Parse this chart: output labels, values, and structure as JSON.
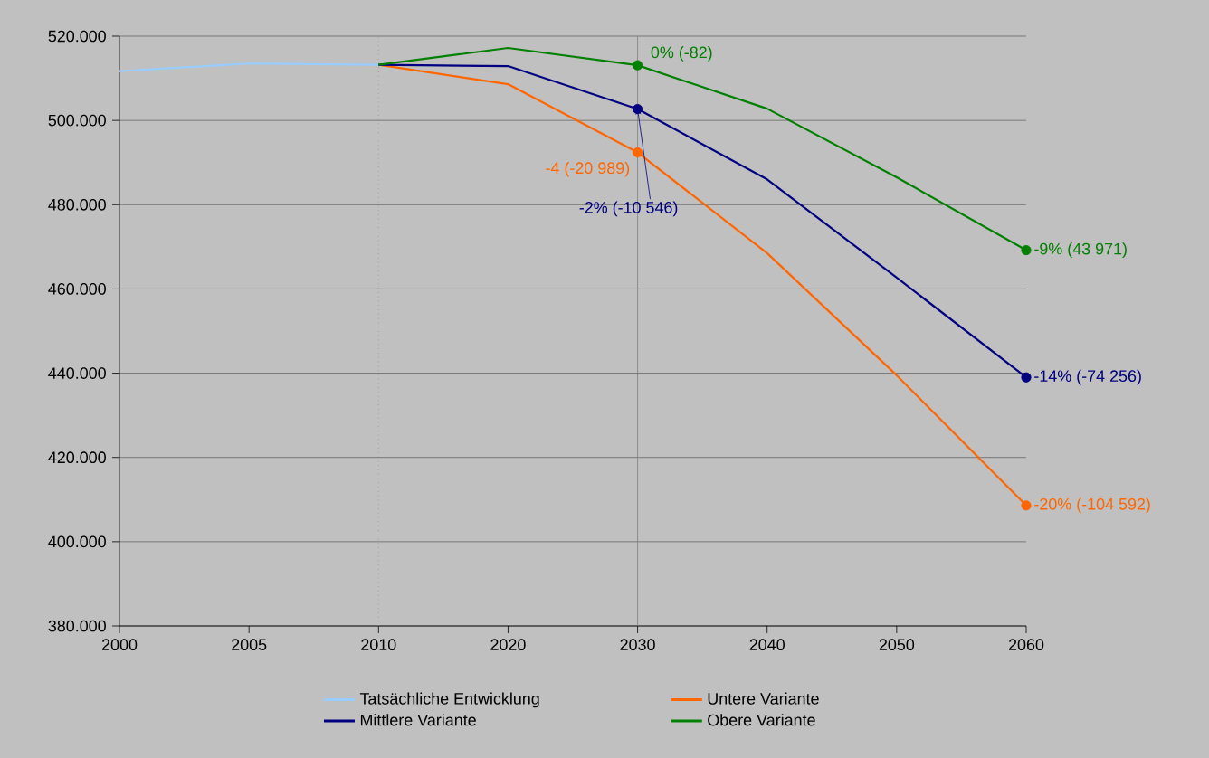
{
  "chart_data": {
    "type": "line",
    "categories": [
      "2000",
      "2005",
      "2010",
      "2020",
      "2030",
      "2040",
      "2050",
      "2060"
    ],
    "series": [
      {
        "name": "Tatsächliche Entwicklung",
        "color": "#99ccff",
        "values": [
          511.7,
          513.5,
          513.2,
          null,
          null,
          null,
          null,
          null
        ]
      },
      {
        "name": "Untere Variante",
        "color": "#ff6600",
        "values": [
          null,
          null,
          513.2,
          508.6,
          492.4,
          468.5,
          439.5,
          408.6
        ]
      },
      {
        "name": "Mittlere Variante",
        "color": "#000080",
        "values": [
          null,
          null,
          513.2,
          512.9,
          502.7,
          486,
          462.7,
          439
        ]
      },
      {
        "name": "Obere Variante",
        "color": "#008000",
        "values": [
          null,
          null,
          513.2,
          517.2,
          513.1,
          502.8,
          486.5,
          469.2
        ]
      }
    ],
    "annotations": [
      {
        "text": "-4 (-20 989)",
        "x": "2030",
        "y": 492.4
      },
      {
        "text": "-20% (-104 592)",
        "x": "2060",
        "y": 408.6
      },
      {
        "text": "-2% (-10 546)",
        "x": "2030",
        "y": 502.7
      },
      {
        "text": "-14% (-74 256)",
        "x": "2060",
        "y": 439
      },
      {
        "text": "0% (-82)",
        "x": "2030",
        "y": 513.1
      },
      {
        "text": "-9% (43 971)",
        "x": "2060",
        "y": 469.2
      }
    ],
    "ylim": [
      380,
      520
    ],
    "yticks": [
      {
        "value": 380,
        "label": "380.000"
      },
      {
        "value": 400,
        "label": "400.000"
      },
      {
        "value": 420,
        "label": "420.000"
      },
      {
        "value": 440,
        "label": "440.000"
      },
      {
        "value": 460,
        "label": "460.000"
      },
      {
        "value": 480,
        "label": "480.000"
      },
      {
        "value": 500,
        "label": "500.000"
      },
      {
        "value": 520,
        "label": "520.000"
      }
    ],
    "ref_lines": [
      {
        "axis": "x",
        "value": "2010",
        "color": "#8c8c8c",
        "line_style": "dotted"
      },
      {
        "axis": "x",
        "value": "2030",
        "color": "#808080",
        "line_style": "solid"
      }
    ],
    "grid": "y",
    "legend": "bottom",
    "line_style": "solid"
  }
}
